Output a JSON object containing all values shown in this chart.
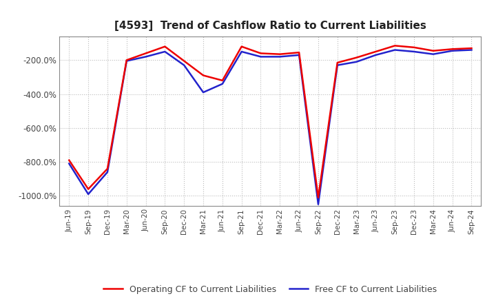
{
  "title": "[4593]  Trend of Cashflow Ratio to Current Liabilities",
  "x_labels": [
    "Jun-19",
    "Sep-19",
    "Dec-19",
    "Mar-20",
    "Jun-20",
    "Sep-20",
    "Dec-20",
    "Mar-21",
    "Jun-21",
    "Sep-21",
    "Dec-21",
    "Mar-22",
    "Jun-22",
    "Sep-22",
    "Dec-22",
    "Mar-23",
    "Jun-23",
    "Sep-23",
    "Dec-23",
    "Mar-24",
    "Jun-24",
    "Sep-24"
  ],
  "operating_cf": [
    -790,
    -960,
    -840,
    -200,
    -160,
    -120,
    -205,
    -290,
    -320,
    -120,
    -160,
    -165,
    -155,
    -1010,
    -215,
    -185,
    -150,
    -115,
    -125,
    -145,
    -135,
    -130
  ],
  "free_cf": [
    -810,
    -990,
    -860,
    -205,
    -180,
    -150,
    -230,
    -390,
    -340,
    -150,
    -180,
    -180,
    -170,
    -1050,
    -230,
    -210,
    -170,
    -140,
    -150,
    -165,
    -145,
    -140
  ],
  "operating_color": "#ee0000",
  "free_color": "#2222cc",
  "ylim_min": -1060,
  "ylim_max": -60,
  "yticks": [
    -1000,
    -800,
    -600,
    -400,
    -200
  ],
  "ytick_labels": [
    "-1000.0%",
    "-800.0%",
    "-600.0%",
    "-400.0%",
    "-200.0%"
  ],
  "bg_color": "#ffffff",
  "grid_color": "#bbbbbb",
  "title_color": "#222222",
  "legend_op": "Operating CF to Current Liabilities",
  "legend_free": "Free CF to Current Liabilities",
  "line_width": 1.8
}
